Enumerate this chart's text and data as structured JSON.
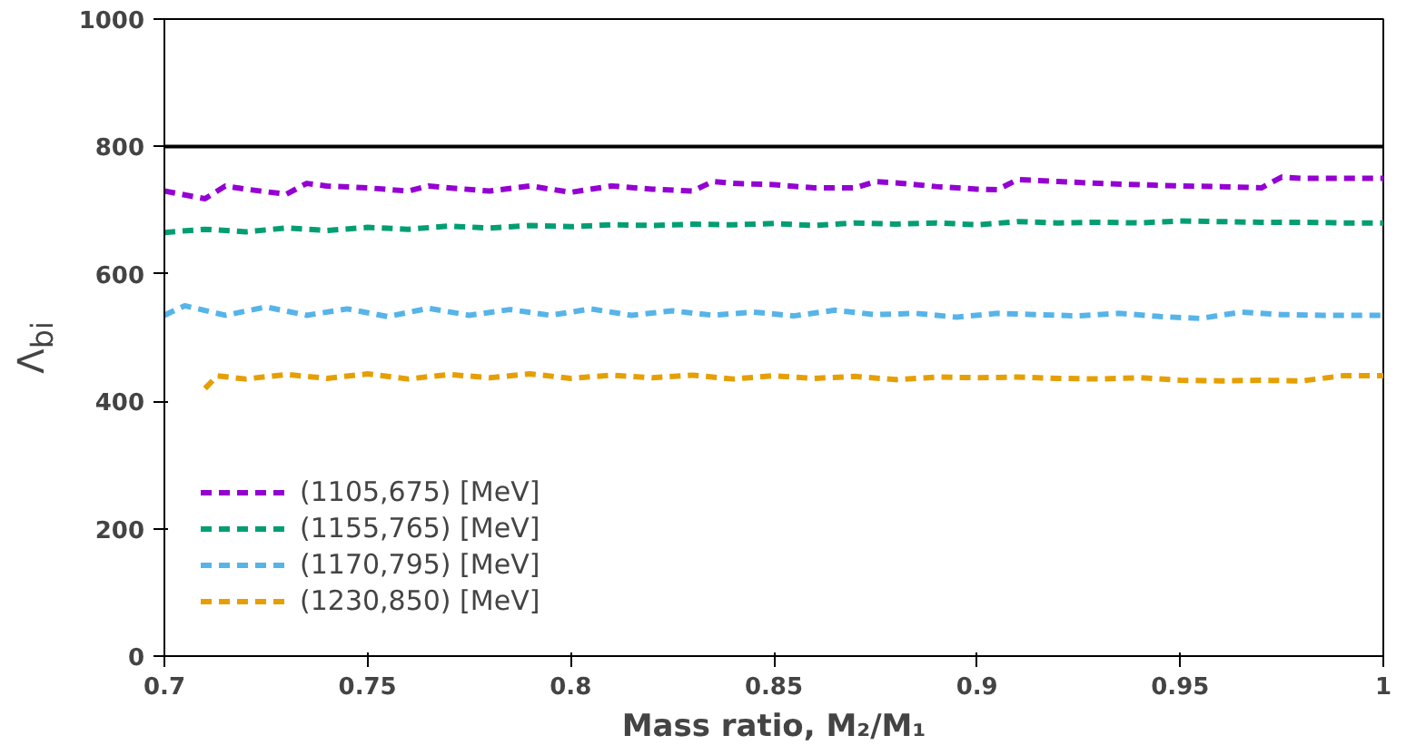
{
  "chart_data": {
    "type": "line",
    "xlabel": "Mass ratio, M₂/M₁",
    "ylabel": "Λ$_{bi}$",
    "xlim": [
      0.7,
      1.0
    ],
    "ylim": [
      0,
      1000
    ],
    "xticks": [
      0.7,
      0.75,
      0.8,
      0.85,
      0.9,
      0.95,
      1
    ],
    "yticks": [
      0,
      200,
      400,
      600,
      800,
      1000
    ],
    "grid": false,
    "legend": "bottom left",
    "line_style": "dashed",
    "marker": "none",
    "ref_lines": [
      {
        "axis": "y",
        "value": 800,
        "color": "#000000"
      }
    ],
    "series": [
      {
        "name": "(1105,675) [MeV]",
        "color": "#9400d3",
        "x": [
          0.7,
          0.71,
          0.715,
          0.72,
          0.73,
          0.735,
          0.74,
          0.75,
          0.76,
          0.765,
          0.77,
          0.78,
          0.79,
          0.8,
          0.81,
          0.82,
          0.83,
          0.835,
          0.84,
          0.85,
          0.86,
          0.87,
          0.875,
          0.88,
          0.89,
          0.9,
          0.905,
          0.91,
          0.92,
          0.93,
          0.94,
          0.95,
          0.96,
          0.97,
          0.975,
          0.98,
          0.99,
          1.0
        ],
        "values": [
          730,
          718,
          738,
          733,
          725,
          742,
          738,
          735,
          730,
          738,
          735,
          730,
          738,
          728,
          738,
          733,
          730,
          745,
          742,
          740,
          735,
          735,
          745,
          743,
          737,
          733,
          732,
          748,
          745,
          742,
          740,
          738,
          737,
          735,
          752,
          750,
          750,
          750
        ]
      },
      {
        "name": "(1155,765) [MeV]",
        "color": "#009e73",
        "x": [
          0.7,
          0.71,
          0.72,
          0.73,
          0.74,
          0.75,
          0.76,
          0.77,
          0.78,
          0.79,
          0.8,
          0.81,
          0.82,
          0.83,
          0.84,
          0.85,
          0.86,
          0.87,
          0.88,
          0.89,
          0.9,
          0.91,
          0.92,
          0.93,
          0.94,
          0.95,
          0.96,
          0.97,
          0.98,
          0.99,
          1.0
        ],
        "values": [
          665,
          670,
          666,
          672,
          668,
          673,
          670,
          675,
          672,
          676,
          674,
          677,
          676,
          678,
          677,
          679,
          676,
          680,
          678,
          680,
          677,
          682,
          680,
          681,
          680,
          683,
          682,
          681,
          681,
          680,
          680
        ]
      },
      {
        "name": "(1170,795) [MeV]",
        "color": "#56b4e9",
        "x": [
          0.7,
          0.705,
          0.715,
          0.725,
          0.735,
          0.745,
          0.755,
          0.765,
          0.775,
          0.785,
          0.795,
          0.805,
          0.815,
          0.825,
          0.835,
          0.845,
          0.855,
          0.865,
          0.875,
          0.885,
          0.895,
          0.905,
          0.915,
          0.925,
          0.935,
          0.945,
          0.955,
          0.965,
          0.975,
          0.985,
          1.0
        ],
        "values": [
          535,
          550,
          535,
          548,
          535,
          545,
          533,
          546,
          535,
          544,
          535,
          545,
          535,
          542,
          535,
          540,
          534,
          543,
          536,
          538,
          532,
          538,
          536,
          534,
          538,
          533,
          530,
          540,
          536,
          535,
          535
        ]
      },
      {
        "name": "(1230,850) [MeV]",
        "color": "#e69f00",
        "x": [
          0.71,
          0.713,
          0.72,
          0.73,
          0.74,
          0.75,
          0.76,
          0.77,
          0.78,
          0.79,
          0.8,
          0.81,
          0.82,
          0.83,
          0.84,
          0.85,
          0.86,
          0.87,
          0.88,
          0.89,
          0.9,
          0.91,
          0.92,
          0.93,
          0.94,
          0.95,
          0.96,
          0.97,
          0.98,
          0.99,
          1.0
        ],
        "values": [
          420,
          440,
          435,
          442,
          436,
          443,
          435,
          442,
          437,
          443,
          436,
          441,
          437,
          441,
          435,
          440,
          436,
          439,
          434,
          438,
          437,
          438,
          436,
          435,
          437,
          433,
          432,
          433,
          432,
          440,
          440
        ]
      }
    ]
  }
}
